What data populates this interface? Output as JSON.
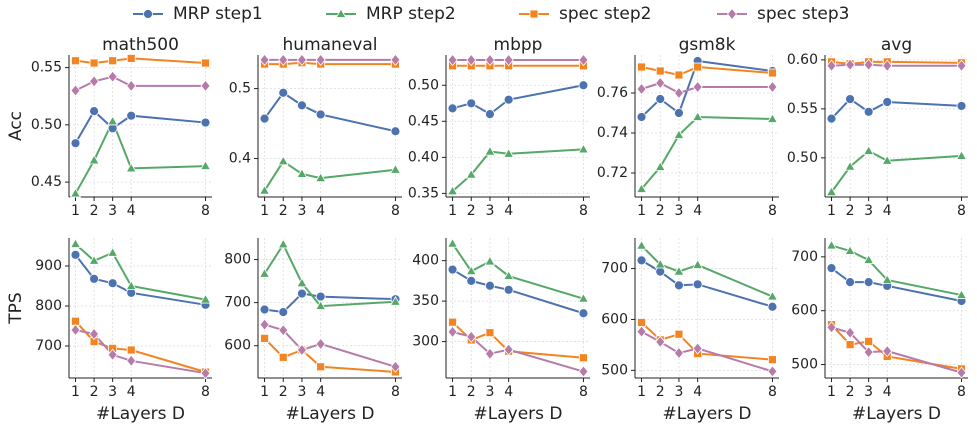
{
  "chart_data": [
    {
      "type": "line",
      "title": "math500",
      "ylabel": "Acc",
      "legend": "upper center",
      "grid": true,
      "x": [
        1,
        2,
        3,
        4,
        8
      ],
      "xlim": [
        0.65,
        8.35
      ],
      "xticks": [
        1,
        2,
        3,
        4,
        8
      ],
      "ylim": [
        0.437,
        0.561
      ],
      "yticks": [
        0.45,
        {
          "value": 0.5,
          "label": "0.50"
        },
        0.55
      ],
      "series": [
        {
          "name": "MRP step1",
          "color": "#4c72b0",
          "marker": "circle",
          "values": [
            0.484,
            0.512,
            0.497,
            0.508,
            0.502
          ]
        },
        {
          "name": "MRP step2",
          "color": "#55a868",
          "marker": "triangle",
          "values": [
            0.44,
            0.469,
            0.503,
            0.462,
            0.464
          ]
        },
        {
          "name": "spec step2",
          "color": "#f28522",
          "marker": "square",
          "values": [
            0.556,
            0.554,
            0.556,
            0.558,
            0.554
          ]
        },
        {
          "name": "spec step3",
          "color": "#b67ba9",
          "marker": "diamond",
          "values": [
            0.53,
            0.538,
            0.542,
            0.534,
            0.534
          ]
        }
      ]
    },
    {
      "type": "line",
      "title": "humaneval",
      "grid": true,
      "x": [
        1,
        2,
        3,
        4,
        8
      ],
      "xlim": [
        0.65,
        8.35
      ],
      "xticks": [
        1,
        2,
        3,
        4,
        8
      ],
      "ylim": [
        0.345,
        0.548
      ],
      "yticks": [
        0.4,
        0.5
      ],
      "series": [
        {
          "name": "MRP step1",
          "color": "#4c72b0",
          "marker": "circle",
          "values": [
            0.457,
            0.494,
            0.476,
            0.463,
            0.439
          ]
        },
        {
          "name": "MRP step2",
          "color": "#55a868",
          "marker": "triangle",
          "values": [
            0.354,
            0.396,
            0.378,
            0.372,
            0.384
          ]
        },
        {
          "name": "spec step2",
          "color": "#f28522",
          "marker": "square",
          "values": [
            0.535,
            0.535,
            0.537,
            0.535,
            0.535
          ]
        },
        {
          "name": "spec step3",
          "color": "#b67ba9",
          "marker": "diamond",
          "values": [
            0.541,
            0.541,
            0.541,
            0.541,
            0.541
          ]
        }
      ]
    },
    {
      "type": "line",
      "title": "mbpp",
      "grid": true,
      "x": [
        1,
        2,
        3,
        4,
        8
      ],
      "xlim": [
        0.65,
        8.35
      ],
      "xticks": [
        1,
        2,
        3,
        4,
        8
      ],
      "ylim": [
        0.345,
        0.542
      ],
      "yticks": [
        0.35,
        {
          "value": 0.4,
          "label": "0.40"
        },
        0.45,
        {
          "value": 0.5,
          "label": "0.50"
        }
      ],
      "series": [
        {
          "name": "MRP step1",
          "color": "#4c72b0",
          "marker": "circle",
          "values": [
            0.468,
            0.475,
            0.46,
            0.48,
            0.5
          ]
        },
        {
          "name": "MRP step2",
          "color": "#55a868",
          "marker": "triangle",
          "values": [
            0.353,
            0.376,
            0.408,
            0.405,
            0.411
          ]
        },
        {
          "name": "spec step2",
          "color": "#f28522",
          "marker": "square",
          "values": [
            0.527,
            0.527,
            0.527,
            0.527,
            0.527
          ]
        },
        {
          "name": "spec step3",
          "color": "#b67ba9",
          "marker": "diamond",
          "values": [
            0.535,
            0.535,
            0.535,
            0.535,
            0.535
          ]
        }
      ]
    },
    {
      "type": "line",
      "title": "gsm8k",
      "grid": true,
      "x": [
        1,
        2,
        3,
        4,
        8
      ],
      "xlim": [
        0.65,
        8.35
      ],
      "xticks": [
        1,
        2,
        3,
        4,
        8
      ],
      "ylim": [
        0.708,
        0.779
      ],
      "yticks": [
        0.72,
        0.74,
        0.76
      ],
      "series": [
        {
          "name": "MRP step1",
          "color": "#4c72b0",
          "marker": "circle",
          "values": [
            0.748,
            0.757,
            0.75,
            0.776,
            0.771
          ]
        },
        {
          "name": "MRP step2",
          "color": "#55a868",
          "marker": "triangle",
          "values": [
            0.712,
            0.723,
            0.739,
            0.748,
            0.747
          ]
        },
        {
          "name": "spec step2",
          "color": "#f28522",
          "marker": "square",
          "values": [
            0.773,
            0.771,
            0.769,
            0.773,
            0.77
          ]
        },
        {
          "name": "spec step3",
          "color": "#b67ba9",
          "marker": "diamond",
          "values": [
            0.762,
            0.765,
            0.76,
            0.763,
            0.763
          ]
        }
      ]
    },
    {
      "type": "line",
      "title": "avg",
      "grid": true,
      "x": [
        1,
        2,
        3,
        4,
        8
      ],
      "xlim": [
        0.65,
        8.35
      ],
      "xticks": [
        1,
        2,
        3,
        4,
        8
      ],
      "ylim": [
        0.46,
        0.605
      ],
      "yticks": [
        {
          "value": 0.5,
          "label": "0.50"
        },
        0.55,
        {
          "value": 0.6,
          "label": "0.60"
        }
      ],
      "series": [
        {
          "name": "MRP step1",
          "color": "#4c72b0",
          "marker": "circle",
          "values": [
            0.54,
            0.56,
            0.547,
            0.557,
            0.553
          ]
        },
        {
          "name": "MRP step2",
          "color": "#55a868",
          "marker": "triangle",
          "values": [
            0.465,
            0.491,
            0.507,
            0.497,
            0.502
          ]
        },
        {
          "name": "spec step2",
          "color": "#f28522",
          "marker": "square",
          "values": [
            0.598,
            0.596,
            0.598,
            0.598,
            0.597
          ]
        },
        {
          "name": "spec step3",
          "color": "#b67ba9",
          "marker": "diamond",
          "values": [
            0.594,
            0.595,
            0.595,
            0.594,
            0.594
          ]
        }
      ]
    },
    {
      "type": "line",
      "ylabel": "TPS",
      "xlabel": "#Layers D",
      "grid": true,
      "x": [
        1,
        2,
        3,
        4,
        8
      ],
      "xlim": [
        0.65,
        8.35
      ],
      "xticks": [
        1,
        2,
        3,
        4,
        8
      ],
      "ylim": [
        620,
        970
      ],
      "yticks": [
        700,
        800,
        900
      ],
      "series": [
        {
          "name": "MRP step1",
          "color": "#4c72b0",
          "marker": "circle",
          "values": [
            928,
            868,
            857,
            833,
            803
          ]
        },
        {
          "name": "MRP step2",
          "color": "#55a868",
          "marker": "triangle",
          "values": [
            955,
            913,
            933,
            850,
            816
          ]
        },
        {
          "name": "spec step2",
          "color": "#f28522",
          "marker": "square",
          "values": [
            762,
            711,
            694,
            690,
            635
          ]
        },
        {
          "name": "spec step3",
          "color": "#b67ba9",
          "marker": "diamond",
          "values": [
            740,
            730,
            678,
            663,
            632
          ]
        }
      ]
    },
    {
      "type": "line",
      "xlabel": "#Layers D",
      "grid": true,
      "x": [
        1,
        2,
        3,
        4,
        8
      ],
      "xlim": [
        0.65,
        8.35
      ],
      "xticks": [
        1,
        2,
        3,
        4,
        8
      ],
      "ylim": [
        525,
        850
      ],
      "yticks": [
        600,
        700,
        800
      ],
      "series": [
        {
          "name": "MRP step1",
          "color": "#4c72b0",
          "marker": "circle",
          "values": [
            684,
            678,
            721,
            714,
            708
          ]
        },
        {
          "name": "MRP step2",
          "color": "#55a868",
          "marker": "triangle",
          "values": [
            767,
            835,
            745,
            692,
            702
          ]
        },
        {
          "name": "spec step2",
          "color": "#f28522",
          "marker": "square",
          "values": [
            617,
            573,
            590,
            551,
            539
          ]
        },
        {
          "name": "spec step3",
          "color": "#b67ba9",
          "marker": "diamond",
          "values": [
            649,
            636,
            590,
            604,
            551
          ]
        }
      ]
    },
    {
      "type": "line",
      "xlabel": "#Layers D",
      "grid": true,
      "x": [
        1,
        2,
        3,
        4,
        8
      ],
      "xlim": [
        0.65,
        8.35
      ],
      "xticks": [
        1,
        2,
        3,
        4,
        8
      ],
      "ylim": [
        255,
        428
      ],
      "yticks": [
        300,
        350,
        400
      ],
      "series": [
        {
          "name": "MRP step1",
          "color": "#4c72b0",
          "marker": "circle",
          "values": [
            389,
            375,
            369,
            364,
            335
          ]
        },
        {
          "name": "MRP step2",
          "color": "#55a868",
          "marker": "triangle",
          "values": [
            421,
            387,
            399,
            381,
            353
          ]
        },
        {
          "name": "spec step2",
          "color": "#f28522",
          "marker": "square",
          "values": [
            324,
            302,
            311,
            288,
            280
          ]
        },
        {
          "name": "spec step3",
          "color": "#b67ba9",
          "marker": "diamond",
          "values": [
            312,
            306,
            285,
            290,
            263
          ]
        }
      ]
    },
    {
      "type": "line",
      "xlabel": "#Layers D",
      "grid": true,
      "x": [
        1,
        2,
        3,
        4,
        8
      ],
      "xlim": [
        0.65,
        8.35
      ],
      "xticks": [
        1,
        2,
        3,
        4,
        8
      ],
      "ylim": [
        485,
        760
      ],
      "yticks": [
        500,
        600,
        700
      ],
      "series": [
        {
          "name": "MRP step1",
          "color": "#4c72b0",
          "marker": "circle",
          "values": [
            716,
            694,
            667,
            669,
            625
          ]
        },
        {
          "name": "MRP step2",
          "color": "#55a868",
          "marker": "triangle",
          "values": [
            745,
            708,
            694,
            707,
            645
          ]
        },
        {
          "name": "spec step2",
          "color": "#f28522",
          "marker": "square",
          "values": [
            594,
            560,
            571,
            533,
            521
          ]
        },
        {
          "name": "spec step3",
          "color": "#b67ba9",
          "marker": "diamond",
          "values": [
            576,
            556,
            534,
            543,
            498
          ]
        }
      ]
    },
    {
      "type": "line",
      "xlabel": "#Layers D",
      "grid": true,
      "x": [
        1,
        2,
        3,
        4,
        8
      ],
      "xlim": [
        0.65,
        8.35
      ],
      "xticks": [
        1,
        2,
        3,
        4,
        8
      ],
      "ylim": [
        475,
        735
      ],
      "yticks": [
        500,
        600,
        700
      ],
      "series": [
        {
          "name": "MRP step1",
          "color": "#4c72b0",
          "marker": "circle",
          "values": [
            679,
            653,
            653,
            646,
            618
          ]
        },
        {
          "name": "MRP step2",
          "color": "#55a868",
          "marker": "triangle",
          "values": [
            721,
            711,
            694,
            657,
            629
          ]
        },
        {
          "name": "spec step2",
          "color": "#f28522",
          "marker": "square",
          "values": [
            574,
            537,
            543,
            515,
            492
          ]
        },
        {
          "name": "spec step3",
          "color": "#b67ba9",
          "marker": "diamond",
          "values": [
            569,
            559,
            523,
            525,
            485
          ]
        }
      ]
    }
  ]
}
